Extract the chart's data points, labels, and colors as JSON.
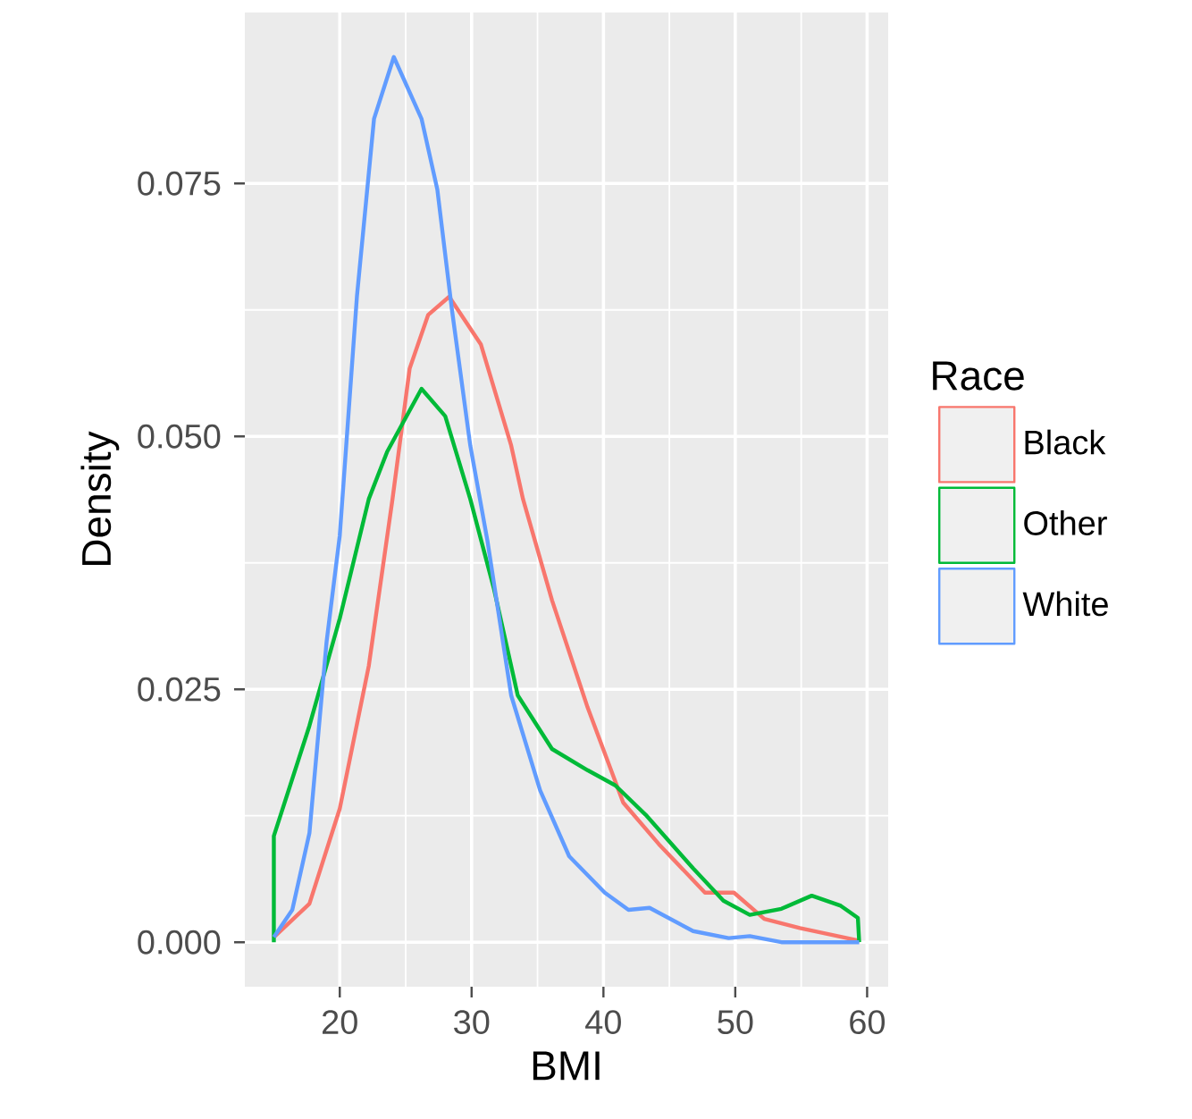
{
  "chart_data": {
    "type": "line",
    "xlabel": "BMI",
    "ylabel": "Density",
    "legend_title": "Race",
    "legend": "right",
    "grid": true,
    "xlim": [
      12.8,
      61.6
    ],
    "ylim": [
      -0.0044,
      0.0919
    ],
    "xticks": [
      20,
      30,
      40,
      50,
      60
    ],
    "yticks": [
      {
        "value": 0,
        "label": "0.000"
      },
      {
        "value": 0.025,
        "label": "0.025"
      },
      {
        "value": 0.05,
        "label": "0.050"
      },
      {
        "value": 0.075,
        "label": "0.075"
      }
    ],
    "series": [
      {
        "name": "Black",
        "color": "#f8766d",
        "x": [
          15,
          17.7,
          20,
          22.2,
          24,
          25.3,
          26.7,
          28.3,
          30.7,
          33,
          33.9,
          36.1,
          38.8,
          41.5,
          44.2,
          47.7,
          49.9,
          52.2,
          54.9,
          59.2,
          59.4
        ],
        "values": [
          0.0005,
          0.0038,
          0.0132,
          0.0273,
          0.0438,
          0.0567,
          0.062,
          0.0638,
          0.0591,
          0.0491,
          0.0438,
          0.0338,
          0.0232,
          0.0138,
          0.0097,
          0.0049,
          0.0049,
          0.0023,
          0.0014,
          0.0002,
          0
        ]
      },
      {
        "name": "Other",
        "color": "#00ba38",
        "x": [
          15,
          15,
          17.7,
          20,
          22.2,
          23.6,
          26.2,
          28,
          29.9,
          31.7,
          33.5,
          36.1,
          38.8,
          40.9,
          43.2,
          46.8,
          49.1,
          51.1,
          53.5,
          55.8,
          58,
          59.3,
          59.4
        ],
        "values": [
          0,
          0.0105,
          0.0214,
          0.032,
          0.0438,
          0.0485,
          0.0547,
          0.052,
          0.0438,
          0.0349,
          0.0244,
          0.0191,
          0.017,
          0.0155,
          0.0126,
          0.0073,
          0.0041,
          0.0027,
          0.0033,
          0.0046,
          0.0036,
          0.0024,
          0
        ]
      },
      {
        "name": "White",
        "color": "#619cff",
        "x": [
          15,
          16.4,
          17.7,
          19,
          20,
          21.3,
          22.6,
          24.1,
          26.2,
          27.4,
          28.5,
          29.9,
          31.2,
          33,
          35.2,
          37.4,
          40.1,
          41.9,
          43.5,
          46.8,
          49.5,
          51.1,
          53.5,
          59.4
        ],
        "values": [
          0.0005,
          0.0032,
          0.0108,
          0.0297,
          0.0402,
          0.0638,
          0.0814,
          0.0875,
          0.0814,
          0.0744,
          0.0626,
          0.0491,
          0.0397,
          0.0244,
          0.015,
          0.0085,
          0.0049,
          0.0032,
          0.0034,
          0.0011,
          0.0004,
          0.0006,
          0,
          0
        ]
      }
    ]
  }
}
